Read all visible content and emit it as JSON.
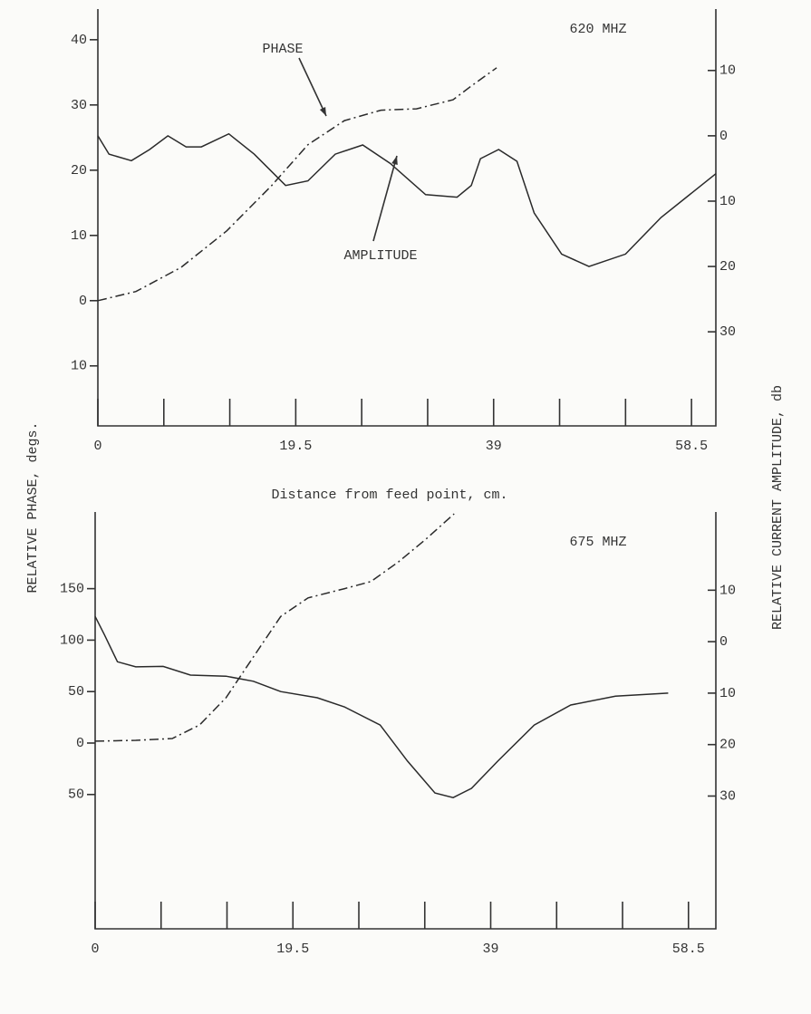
{
  "axis_titles": {
    "y": "RELATIVE PHASE, degs.",
    "y2": "RELATIVE CURRENT AMPLITUDE, db",
    "x": "Distance from feed point, cm."
  },
  "chart_data": [
    {
      "type": "line",
      "title": "620 MHZ",
      "xlim": [
        0,
        60.9
      ],
      "xticks": [
        0,
        19.5,
        39,
        58.5
      ],
      "xminor_ticks": [
        6.5,
        13,
        26,
        32.5,
        45.5,
        52
      ],
      "ylim": [
        -19.2,
        44.7
      ],
      "yticks": [
        40,
        30,
        20,
        10,
        0,
        {
          "value": -10,
          "label": "10"
        }
      ],
      "y2lim": [
        44.4,
        -19.4
      ],
      "y2ticks": [
        {
          "value": -10,
          "label": "10"
        },
        0,
        10,
        20,
        30
      ],
      "series": [
        {
          "name": "PHASE",
          "color": "#2a2a2a",
          "dash": "dashdot",
          "axis": "y",
          "x": [
            0,
            3.75,
            8.2,
            12.7,
            17.1,
            20.7,
            24.3,
            27.9,
            31.4,
            35,
            36.8,
            39.3
          ],
          "values": [
            0,
            1.4,
            5.1,
            10.7,
            17.6,
            23.9,
            27.6,
            29.2,
            29.4,
            30.8,
            32.9,
            35.7
          ]
        },
        {
          "name": "AMPLITUDE",
          "color": "#2a2a2a",
          "dash": "solid",
          "axis": "y2",
          "x": [
            0,
            1.1,
            3.3,
            5.1,
            6.9,
            8.7,
            10.2,
            12.9,
            15.4,
            18.5,
            20.7,
            23.4,
            26.1,
            28.8,
            32.3,
            35.4,
            36.8,
            37.7,
            39.5,
            41.3,
            43,
            45.7,
            48.4,
            52,
            55.5,
            60.9
          ],
          "values": [
            0,
            2.8,
            3.8,
            2.1,
            0,
            1.7,
            1.7,
            -0.3,
            2.8,
            7.6,
            6.9,
            2.8,
            1.4,
            4.2,
            9,
            9.4,
            7.6,
            3.5,
            2.1,
            3.9,
            11.8,
            18.1,
            20,
            18.1,
            12.5,
            5.8
          ]
        }
      ]
    },
    {
      "type": "line",
      "title": "675 MHZ",
      "xlim": [
        0,
        61.2
      ],
      "xticks": [
        0,
        19.5,
        39,
        58.5
      ],
      "xminor_ticks": [
        6.5,
        13,
        26,
        32.5,
        45.5,
        52
      ],
      "ylim": [
        -180.5,
        224.5
      ],
      "yticks": [
        150,
        100,
        50,
        0,
        {
          "value": -50,
          "label": "50"
        }
      ],
      "y2lim": [
        55.8,
        -25.2
      ],
      "y2ticks": [
        {
          "value": -10,
          "label": "10"
        },
        0,
        10,
        20,
        30
      ],
      "series": [
        {
          "color": "#2a2a2a",
          "dash": "dashdot",
          "axis": "y",
          "x": [
            0,
            4.0,
            7.6,
            10.3,
            12.9,
            15.6,
            18.3,
            21.0,
            24.6,
            27.2,
            29.9,
            32.6,
            35.4
          ],
          "values": [
            1.8,
            2.6,
            4.4,
            17.6,
            44,
            83.6,
            123,
            141,
            150,
            157,
            176,
            198,
            222.7
          ]
        },
        {
          "color": "#2a2a2a",
          "dash": "solid",
          "axis": "y2",
          "x": [
            0,
            0.9,
            2.2,
            4.0,
            6.7,
            9.4,
            12.9,
            15.6,
            18.3,
            21.9,
            24.6,
            28.1,
            30.8,
            33.5,
            35.3,
            37.1,
            39.7,
            43.3,
            46.9,
            51.3,
            56.5
          ],
          "values": [
            -4.9,
            -1.4,
            3.9,
            4.9,
            4.8,
            6.5,
            6.7,
            7.7,
            9.7,
            10.9,
            12.7,
            16.2,
            23.2,
            29.4,
            30.3,
            28.5,
            23.2,
            16.2,
            12.3,
            10.6,
            10.0
          ]
        }
      ]
    }
  ]
}
